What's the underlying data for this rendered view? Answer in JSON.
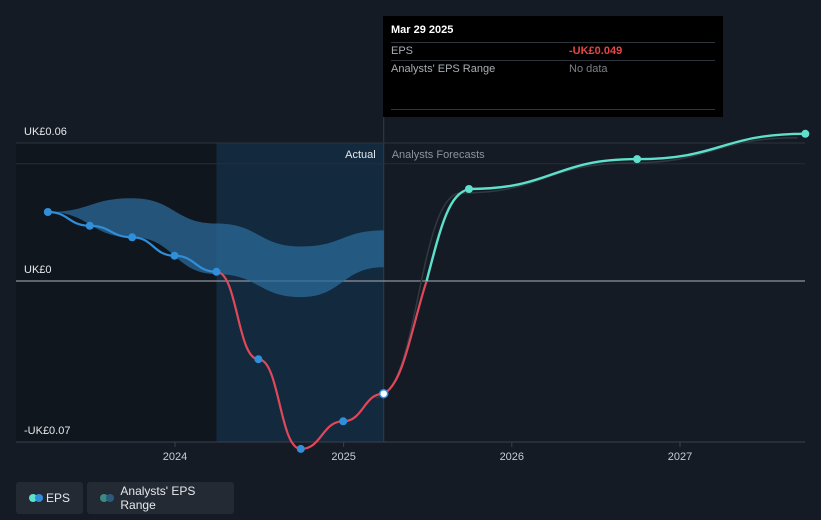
{
  "tooltip": {
    "date": "Mar 29 2025",
    "rows": [
      {
        "label": "EPS",
        "value": "-UK£0.049"
      },
      {
        "label": "Analysts' EPS Range",
        "value": "No data"
      }
    ]
  },
  "segments": {
    "actual": "Actual",
    "forecast": "Analysts Forecasts"
  },
  "legend": {
    "eps": "EPS",
    "range": "Analysts' EPS Range"
  },
  "colors": {
    "eps_positive": "#2f8fdb",
    "eps_negative": "#e0485a",
    "forecast": "#5ee0cc",
    "range_band": "#2b6a9a",
    "background": "#151b24"
  },
  "chart_data": {
    "type": "line",
    "xlabel": "",
    "ylabel": "",
    "x_ticks": [
      "2024",
      "2025",
      "2026",
      "2027"
    ],
    "y_ticks": [
      {
        "value": 0.06,
        "label": "UK£0.06"
      },
      {
        "value": 0.0,
        "label": "UK£0"
      },
      {
        "value": -0.07,
        "label": "-UK£0.07"
      }
    ],
    "xlim": [
      "2023-03",
      "2027-09"
    ],
    "ylim": [
      -0.077,
      0.071
    ],
    "series": [
      {
        "name": "EPS",
        "kind": "actual",
        "points": [
          {
            "x": "2023-03-31",
            "y": 0.03
          },
          {
            "x": "2023-06-30",
            "y": 0.024
          },
          {
            "x": "2023-09-30",
            "y": 0.019
          },
          {
            "x": "2023-12-31",
            "y": 0.011
          },
          {
            "x": "2024-03-31",
            "y": 0.004
          },
          {
            "x": "2024-06-30",
            "y": -0.034
          },
          {
            "x": "2024-09-30",
            "y": -0.073
          },
          {
            "x": "2024-12-31",
            "y": -0.061
          },
          {
            "x": "2025-03-29",
            "y": -0.049
          }
        ]
      },
      {
        "name": "Forecast",
        "kind": "forecast",
        "points": [
          {
            "x": "2025-03-29",
            "y": -0.049
          },
          {
            "x": "2025-09-30",
            "y": 0.04
          },
          {
            "x": "2026-09-30",
            "y": 0.053
          },
          {
            "x": "2027-09-30",
            "y": 0.064
          }
        ]
      }
    ],
    "range_band": {
      "name": "Analysts' EPS Range",
      "upper": [
        {
          "x": "2023-03-31",
          "y": 0.03
        },
        {
          "x": "2023-09-30",
          "y": 0.036
        },
        {
          "x": "2024-03-31",
          "y": 0.025
        },
        {
          "x": "2024-09-30",
          "y": 0.015
        },
        {
          "x": "2025-03-29",
          "y": 0.022
        }
      ],
      "lower": [
        {
          "x": "2023-03-31",
          "y": 0.03
        },
        {
          "x": "2023-09-30",
          "y": 0.019
        },
        {
          "x": "2024-03-31",
          "y": 0.003
        },
        {
          "x": "2024-09-30",
          "y": -0.007
        },
        {
          "x": "2025-03-29",
          "y": 0.006
        }
      ]
    },
    "highlight_point": {
      "x": "2025-03-29",
      "y": -0.049
    },
    "grid": true,
    "legend_position": "bottom-left"
  }
}
